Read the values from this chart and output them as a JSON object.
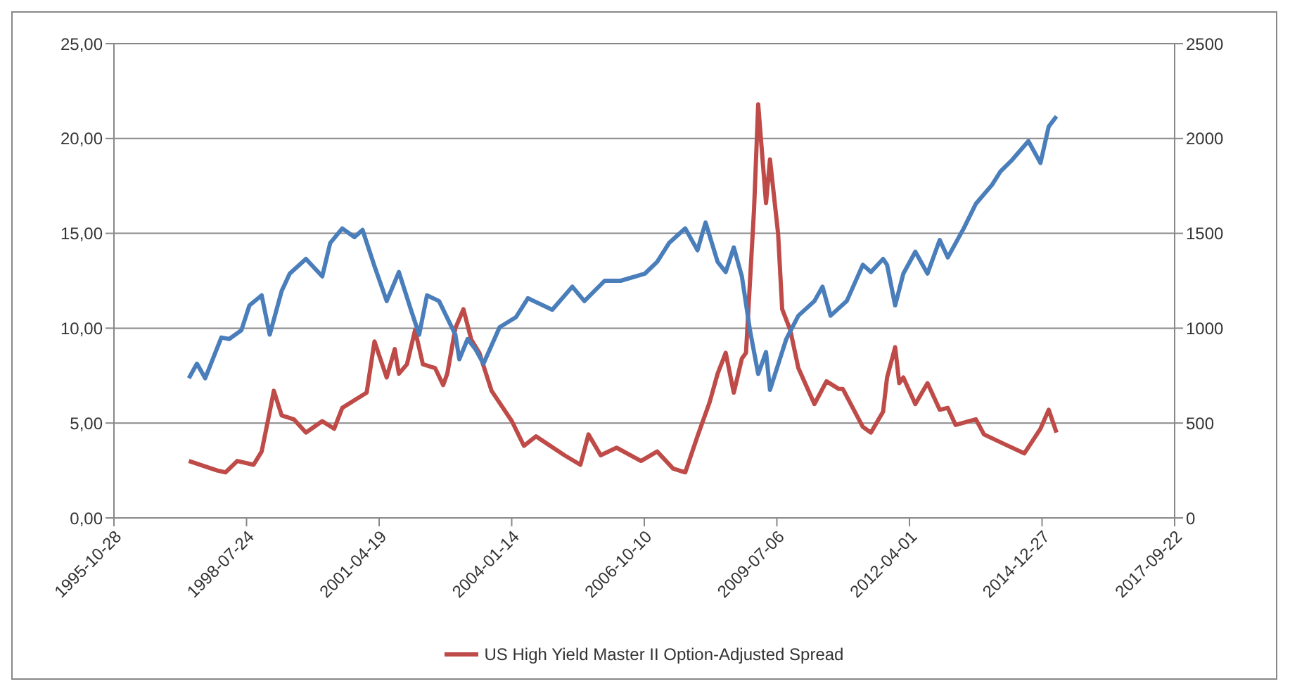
{
  "chart_data": {
    "type": "line",
    "xlim": [
      "1995-10-28",
      "2017-09-22"
    ],
    "xticks": [
      "1995-10-28",
      "1998-07-24",
      "2001-04-19",
      "2004-01-14",
      "2006-10-10",
      "2009-07-06",
      "2012-04-01",
      "2014-12-27",
      "2017-09-22"
    ],
    "ylim": [
      0,
      25
    ],
    "yticks": [
      {
        "value": 0,
        "label": "0,00"
      },
      {
        "value": 5,
        "label": "5,00"
      },
      {
        "value": 10,
        "label": "10,00"
      },
      {
        "value": 15,
        "label": "15,00"
      },
      {
        "value": 20,
        "label": "20,00"
      },
      {
        "value": 25,
        "label": "25,00"
      }
    ],
    "y2lim": [
      0,
      2500
    ],
    "y2ticks": [
      0,
      500,
      1000,
      1500,
      2000,
      2500
    ],
    "grid": "y",
    "legend": "bottom",
    "marker": "none",
    "line_style": "solid",
    "series": [
      {
        "name": "US High Yield Master II Option-Adjusted Spread",
        "color": "#be4b48",
        "x": [
          "1997-05",
          "1997-12",
          "1998-02",
          "1998-05",
          "1998-09",
          "1998-11",
          "1999-01",
          "1999-02",
          "1999-04",
          "1999-07",
          "1999-10",
          "2000-02",
          "2000-05",
          "2000-07",
          "2001-01",
          "2001-03",
          "2001-06",
          "2001-08",
          "2001-09",
          "2001-11",
          "2002-01",
          "2002-03",
          "2002-06",
          "2002-08",
          "2002-09",
          "2002-11",
          "2003-01",
          "2003-03",
          "2003-05",
          "2003-08",
          "2004-01",
          "2004-04",
          "2004-07",
          "2005-02",
          "2005-06",
          "2005-08",
          "2005-11",
          "2006-03",
          "2006-09",
          "2007-01",
          "2007-05",
          "2007-08",
          "2007-11",
          "2008-02",
          "2008-04",
          "2008-06",
          "2008-08",
          "2008-10",
          "2008-11",
          "2009-01",
          "2009-02",
          "2009-04",
          "2009-05",
          "2009-07",
          "2009-08",
          "2009-10",
          "2009-12",
          "2010-04",
          "2010-07",
          "2010-10",
          "2010-11",
          "2011-04",
          "2011-06",
          "2011-09",
          "2011-10",
          "2011-12",
          "2012-01",
          "2012-02",
          "2012-05",
          "2012-08",
          "2012-11",
          "2013-01",
          "2013-03",
          "2013-08",
          "2013-10",
          "2014-03",
          "2014-08",
          "2014-12",
          "2015-02",
          "2015-04"
        ],
        "values": [
          3.0,
          2.5,
          2.4,
          3.0,
          2.8,
          3.5,
          5.6,
          6.7,
          5.4,
          5.2,
          4.5,
          5.1,
          4.7,
          5.8,
          6.6,
          9.3,
          7.4,
          8.9,
          7.6,
          8.1,
          9.9,
          8.1,
          7.9,
          7.0,
          7.6,
          10.0,
          11.0,
          9.4,
          8.7,
          6.7,
          5.1,
          3.8,
          4.3,
          3.3,
          2.8,
          4.4,
          3.3,
          3.7,
          3.0,
          3.5,
          2.6,
          2.4,
          4.3,
          6.1,
          7.6,
          8.7,
          6.6,
          8.4,
          8.7,
          16.3,
          21.8,
          16.6,
          18.9,
          15.0,
          11.0,
          9.9,
          7.9,
          6.0,
          7.2,
          6.8,
          6.8,
          4.8,
          4.5,
          5.6,
          7.4,
          9.0,
          7.1,
          7.4,
          6.0,
          7.1,
          5.7,
          5.8,
          4.9,
          5.2,
          4.4,
          3.9,
          3.4,
          4.7,
          5.7,
          4.5
        ]
      },
      {
        "color": "#4a7ebb",
        "axis": "y2",
        "x": [
          "1997-05",
          "1997-07",
          "1997-09",
          "1998-01",
          "1998-03",
          "1998-06",
          "1998-08",
          "1998-11",
          "1999-01",
          "1999-04",
          "1999-06",
          "1999-10",
          "2000-02",
          "2000-04",
          "2000-07",
          "2000-10",
          "2000-12",
          "2001-03",
          "2001-06",
          "2001-09",
          "2001-12",
          "2002-02",
          "2002-04",
          "2002-07",
          "2002-11",
          "2002-12",
          "2003-02",
          "2003-04",
          "2003-06",
          "2003-10",
          "2004-02",
          "2004-05",
          "2004-11",
          "2005-04",
          "2005-07",
          "2005-12",
          "2006-04",
          "2006-10",
          "2007-01",
          "2007-04",
          "2007-08",
          "2007-11",
          "2008-01",
          "2008-04",
          "2008-06",
          "2008-08",
          "2008-10",
          "2008-12",
          "2009-02",
          "2009-04",
          "2009-05",
          "2009-09",
          "2009-12",
          "2010-04",
          "2010-06",
          "2010-08",
          "2010-12",
          "2011-04",
          "2011-06",
          "2011-09",
          "2011-10",
          "2011-12",
          "2012-02",
          "2012-05",
          "2012-08",
          "2012-11",
          "2013-01",
          "2013-05",
          "2013-08",
          "2013-12",
          "2014-02",
          "2014-05",
          "2014-09",
          "2014-12",
          "2015-02",
          "2015-04"
        ],
        "values": [
          736,
          813,
          736,
          951,
          943,
          989,
          1120,
          1173,
          966,
          1196,
          1288,
          1365,
          1273,
          1449,
          1526,
          1480,
          1518,
          1327,
          1143,
          1296,
          1097,
          966,
          1173,
          1143,
          966,
          836,
          943,
          890,
          813,
          1005,
          1058,
          1158,
          1097,
          1219,
          1143,
          1250,
          1250,
          1288,
          1350,
          1449,
          1526,
          1411,
          1557,
          1350,
          1296,
          1426,
          1273,
          989,
          759,
          874,
          675,
          943,
          1066,
          1143,
          1219,
          1066,
          1143,
          1334,
          1296,
          1365,
          1334,
          1120,
          1288,
          1403,
          1288,
          1465,
          1373,
          1526,
          1656,
          1756,
          1825,
          1887,
          1986,
          1871,
          2063,
          2117
        ]
      }
    ]
  }
}
